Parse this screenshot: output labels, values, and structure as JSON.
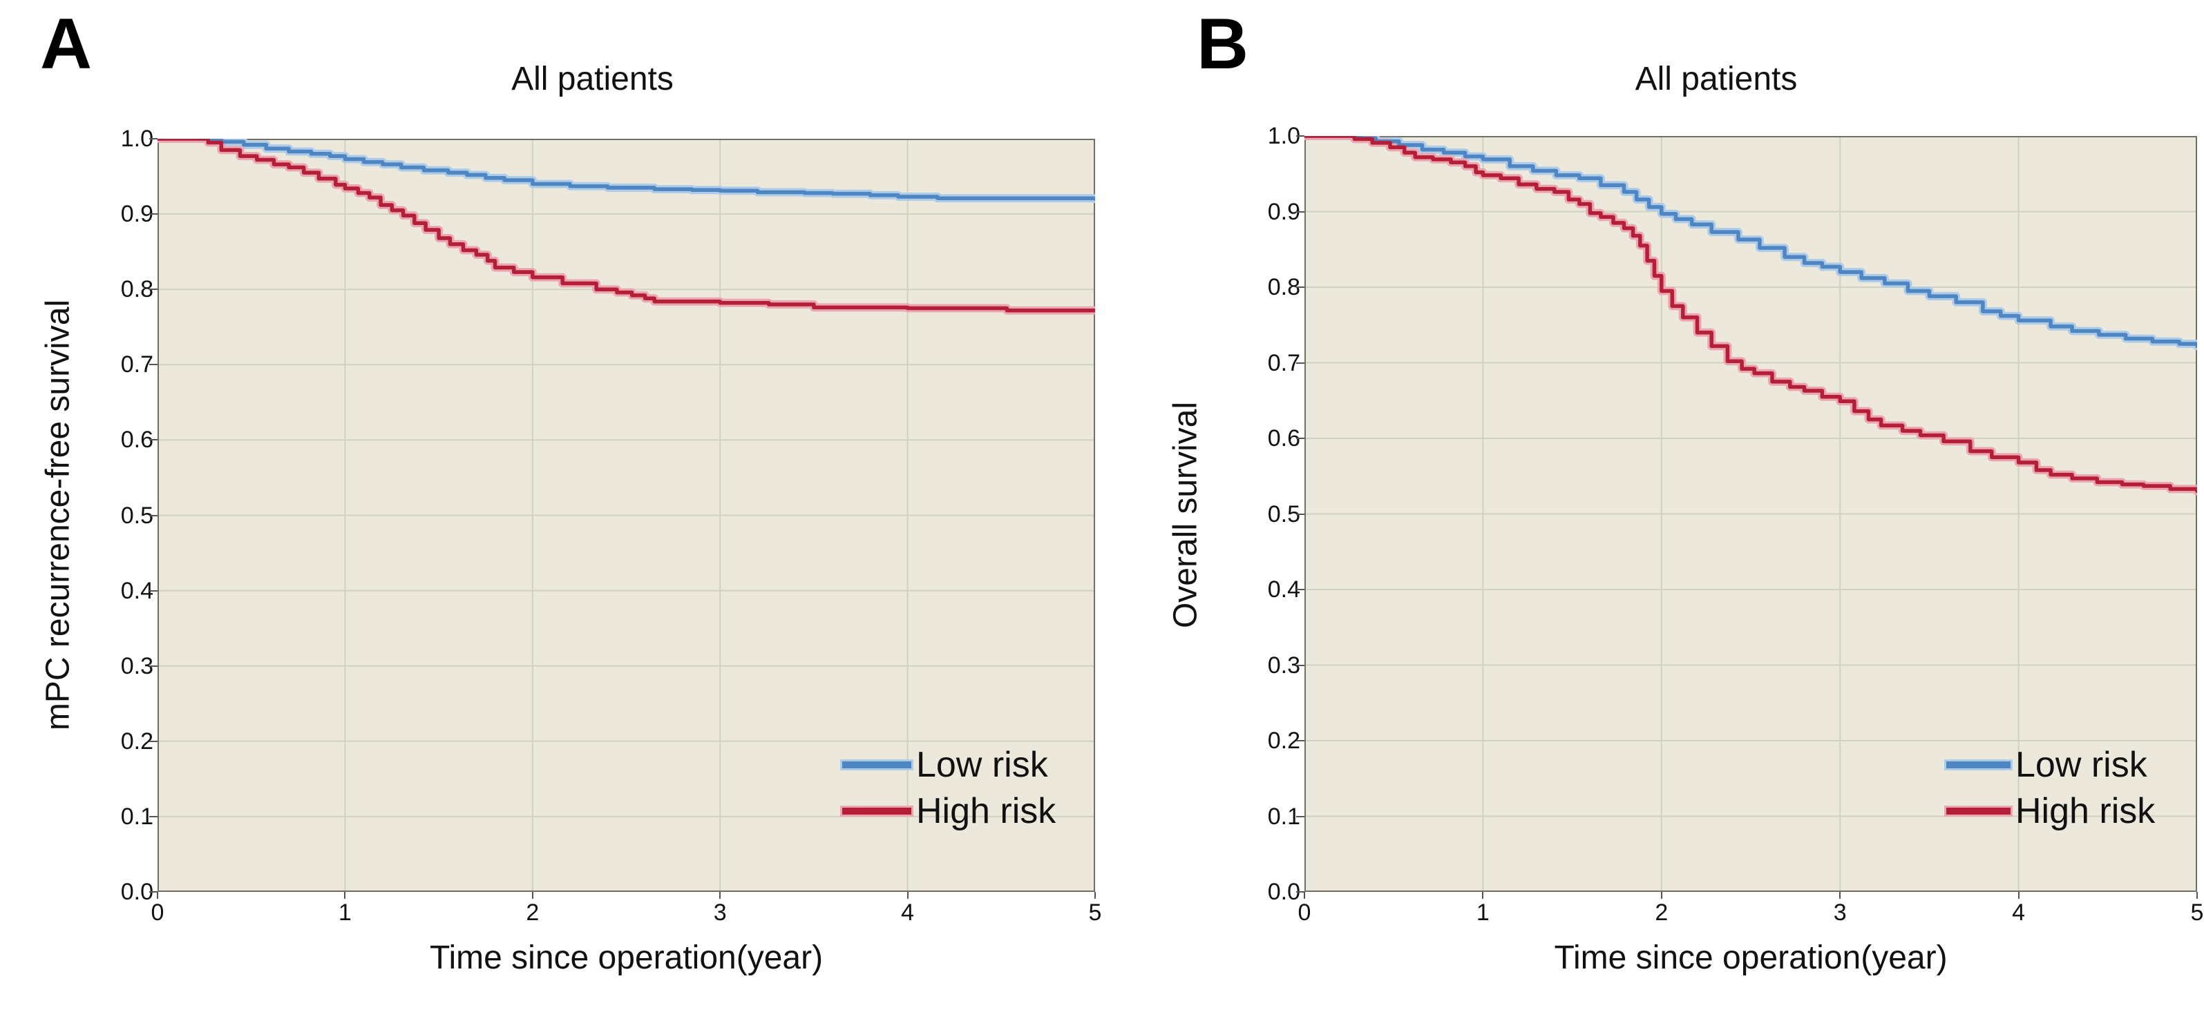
{
  "colors": {
    "background": "#ffffff",
    "plot_background": "#ece9dc",
    "gridline": "#d2d0c0",
    "frame": "#6f6f66",
    "text": "#111111",
    "low_risk": "#4d86c2",
    "low_risk_halo": "#aecbe8",
    "high_risk": "#b51e37",
    "high_risk_halo": "#eba7b1"
  },
  "chart_data": [
    {
      "type": "line",
      "panel_letter": "A",
      "title": "All patients",
      "xlabel": "Time since operation(year)",
      "ylabel": "mPC recurrence-free survival",
      "xlim": [
        0,
        5
      ],
      "ylim": [
        0,
        1
      ],
      "x_ticks": [
        "0",
        "1",
        "2",
        "3",
        "4",
        "5"
      ],
      "y_ticks": [
        "1.0",
        "0.9",
        "0.8",
        "0.7",
        "0.6",
        "0.5",
        "0.4",
        "0.3",
        "0.2",
        "0.1",
        "0.0"
      ],
      "grid": true,
      "legend": {
        "position": "lower right",
        "entries": [
          {
            "label": "Low risk",
            "color": "#4d86c2"
          },
          {
            "label": "High risk",
            "color": "#b51e37"
          }
        ]
      },
      "series": [
        {
          "name": "Low risk",
          "color": "#4d86c2",
          "halo": "#aecbe8",
          "step": true,
          "points": [
            [
              0,
              1.0
            ],
            [
              0.28,
              1.0
            ],
            [
              0.34,
              0.996
            ],
            [
              0.46,
              0.992
            ],
            [
              0.58,
              0.987
            ],
            [
              0.7,
              0.983
            ],
            [
              0.82,
              0.98
            ],
            [
              0.92,
              0.977
            ],
            [
              1.0,
              0.973
            ],
            [
              1.1,
              0.969
            ],
            [
              1.2,
              0.966
            ],
            [
              1.3,
              0.962
            ],
            [
              1.42,
              0.958
            ],
            [
              1.55,
              0.955
            ],
            [
              1.65,
              0.952
            ],
            [
              1.75,
              0.948
            ],
            [
              1.85,
              0.945
            ],
            [
              2.0,
              0.94
            ],
            [
              2.2,
              0.937
            ],
            [
              2.4,
              0.935
            ],
            [
              2.65,
              0.933
            ],
            [
              2.85,
              0.932
            ],
            [
              3.0,
              0.931
            ],
            [
              3.2,
              0.929
            ],
            [
              3.45,
              0.928
            ],
            [
              3.6,
              0.927
            ],
            [
              3.8,
              0.925
            ],
            [
              3.95,
              0.923
            ],
            [
              4.16,
              0.921
            ],
            [
              4.5,
              0.921
            ],
            [
              5.0,
              0.92
            ]
          ]
        },
        {
          "name": "High risk",
          "color": "#b51e37",
          "halo": "#eba7b1",
          "step": true,
          "points": [
            [
              0,
              1.0
            ],
            [
              0.21,
              1.0
            ],
            [
              0.27,
              0.995
            ],
            [
              0.34,
              0.985
            ],
            [
              0.44,
              0.977
            ],
            [
              0.53,
              0.972
            ],
            [
              0.62,
              0.966
            ],
            [
              0.7,
              0.962
            ],
            [
              0.78,
              0.955
            ],
            [
              0.86,
              0.947
            ],
            [
              0.95,
              0.939
            ],
            [
              1.0,
              0.934
            ],
            [
              1.07,
              0.928
            ],
            [
              1.13,
              0.922
            ],
            [
              1.19,
              0.912
            ],
            [
              1.25,
              0.905
            ],
            [
              1.31,
              0.898
            ],
            [
              1.37,
              0.888
            ],
            [
              1.43,
              0.879
            ],
            [
              1.5,
              0.868
            ],
            [
              1.56,
              0.86
            ],
            [
              1.63,
              0.852
            ],
            [
              1.7,
              0.846
            ],
            [
              1.76,
              0.838
            ],
            [
              1.8,
              0.829
            ],
            [
              1.9,
              0.823
            ],
            [
              2.0,
              0.816
            ],
            [
              2.16,
              0.808
            ],
            [
              2.34,
              0.8
            ],
            [
              2.45,
              0.796
            ],
            [
              2.53,
              0.792
            ],
            [
              2.6,
              0.788
            ],
            [
              2.65,
              0.784
            ],
            [
              3.0,
              0.782
            ],
            [
              3.26,
              0.78
            ],
            [
              3.5,
              0.776
            ],
            [
              4.0,
              0.775
            ],
            [
              4.53,
              0.772
            ],
            [
              5.0,
              0.772
            ]
          ]
        }
      ]
    },
    {
      "type": "line",
      "panel_letter": "B",
      "title": "All patients",
      "xlabel": "Time since operation(year)",
      "ylabel": "Overall survival",
      "xlim": [
        0,
        5
      ],
      "ylim": [
        0,
        1
      ],
      "x_ticks": [
        "0",
        "1",
        "2",
        "3",
        "4",
        "5"
      ],
      "y_ticks": [
        "1.0",
        "0.9",
        "0.8",
        "0.7",
        "0.6",
        "0.5",
        "0.4",
        "0.3",
        "0.2",
        "0.1",
        "0.0"
      ],
      "grid": true,
      "legend": {
        "position": "lower right",
        "entries": [
          {
            "label": "Low risk",
            "color": "#4d86c2"
          },
          {
            "label": "High risk",
            "color": "#b51e37"
          }
        ]
      },
      "series": [
        {
          "name": "Low risk",
          "color": "#4d86c2",
          "halo": "#aecbe8",
          "step": true,
          "points": [
            [
              0,
              1.0
            ],
            [
              0.25,
              1.0
            ],
            [
              0.32,
              0.997
            ],
            [
              0.4,
              0.993
            ],
            [
              0.53,
              0.988
            ],
            [
              0.66,
              0.982
            ],
            [
              0.78,
              0.978
            ],
            [
              0.9,
              0.973
            ],
            [
              1.0,
              0.969
            ],
            [
              1.15,
              0.96
            ],
            [
              1.28,
              0.954
            ],
            [
              1.41,
              0.948
            ],
            [
              1.54,
              0.944
            ],
            [
              1.66,
              0.935
            ],
            [
              1.79,
              0.926
            ],
            [
              1.86,
              0.916
            ],
            [
              1.93,
              0.906
            ],
            [
              2.0,
              0.897
            ],
            [
              2.08,
              0.89
            ],
            [
              2.17,
              0.883
            ],
            [
              2.28,
              0.873
            ],
            [
              2.43,
              0.863
            ],
            [
              2.55,
              0.852
            ],
            [
              2.69,
              0.84
            ],
            [
              2.8,
              0.832
            ],
            [
              2.9,
              0.827
            ],
            [
              3.0,
              0.82
            ],
            [
              3.12,
              0.812
            ],
            [
              3.25,
              0.805
            ],
            [
              3.38,
              0.795
            ],
            [
              3.5,
              0.788
            ],
            [
              3.65,
              0.78
            ],
            [
              3.8,
              0.768
            ],
            [
              3.9,
              0.762
            ],
            [
              4.0,
              0.756
            ],
            [
              4.18,
              0.748
            ],
            [
              4.3,
              0.742
            ],
            [
              4.45,
              0.737
            ],
            [
              4.6,
              0.732
            ],
            [
              4.75,
              0.728
            ],
            [
              4.9,
              0.725
            ],
            [
              5.0,
              0.722
            ]
          ]
        },
        {
          "name": "High risk",
          "color": "#b51e37",
          "halo": "#eba7b1",
          "step": true,
          "points": [
            [
              0,
              1.0
            ],
            [
              0.2,
              1.0
            ],
            [
              0.28,
              0.996
            ],
            [
              0.38,
              0.991
            ],
            [
              0.48,
              0.985
            ],
            [
              0.56,
              0.978
            ],
            [
              0.62,
              0.972
            ],
            [
              0.72,
              0.969
            ],
            [
              0.82,
              0.965
            ],
            [
              0.9,
              0.96
            ],
            [
              0.96,
              0.952
            ],
            [
              1.0,
              0.948
            ],
            [
              1.1,
              0.944
            ],
            [
              1.2,
              0.936
            ],
            [
              1.3,
              0.93
            ],
            [
              1.4,
              0.926
            ],
            [
              1.48,
              0.916
            ],
            [
              1.54,
              0.91
            ],
            [
              1.6,
              0.898
            ],
            [
              1.66,
              0.893
            ],
            [
              1.73,
              0.885
            ],
            [
              1.79,
              0.878
            ],
            [
              1.84,
              0.868
            ],
            [
              1.88,
              0.855
            ],
            [
              1.92,
              0.835
            ],
            [
              1.96,
              0.815
            ],
            [
              2.0,
              0.795
            ],
            [
              2.06,
              0.775
            ],
            [
              2.12,
              0.76
            ],
            [
              2.2,
              0.74
            ],
            [
              2.28,
              0.722
            ],
            [
              2.37,
              0.702
            ],
            [
              2.45,
              0.692
            ],
            [
              2.52,
              0.686
            ],
            [
              2.62,
              0.675
            ],
            [
              2.72,
              0.668
            ],
            [
              2.8,
              0.663
            ],
            [
              2.9,
              0.655
            ],
            [
              3.0,
              0.649
            ],
            [
              3.08,
              0.636
            ],
            [
              3.16,
              0.625
            ],
            [
              3.23,
              0.617
            ],
            [
              3.35,
              0.61
            ],
            [
              3.45,
              0.604
            ],
            [
              3.58,
              0.596
            ],
            [
              3.73,
              0.583
            ],
            [
              3.85,
              0.575
            ],
            [
              4.0,
              0.568
            ],
            [
              4.1,
              0.558
            ],
            [
              4.18,
              0.552
            ],
            [
              4.3,
              0.547
            ],
            [
              4.44,
              0.542
            ],
            [
              4.58,
              0.539
            ],
            [
              4.7,
              0.537
            ],
            [
              4.85,
              0.533
            ],
            [
              5.0,
              0.53
            ]
          ]
        }
      ]
    }
  ]
}
